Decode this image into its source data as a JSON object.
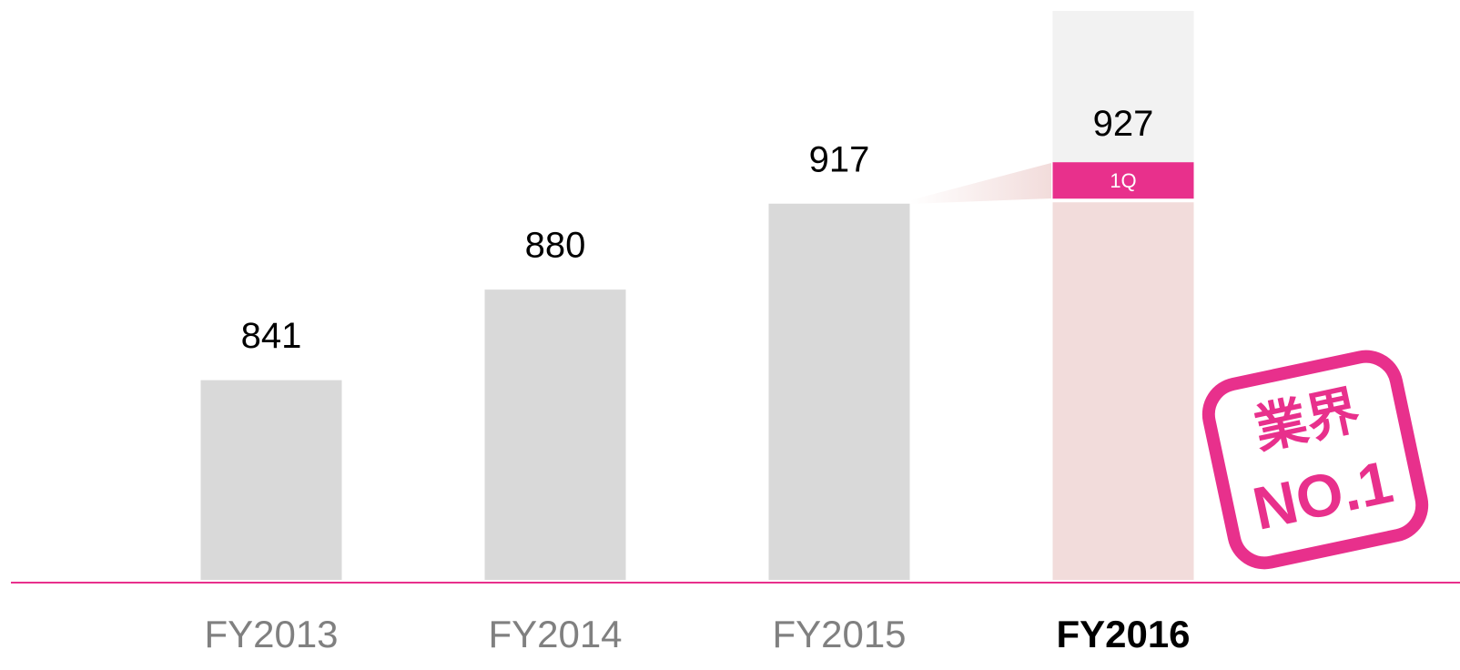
{
  "chart_data": {
    "type": "bar",
    "categories": [
      "FY2013",
      "FY2014",
      "FY2015",
      "FY2016"
    ],
    "values": [
      841,
      880,
      917,
      927
    ],
    "color": "#d9d9d9",
    "highlight_index": 3,
    "highlight_color": "#f2dcdb",
    "segment_label": "1Q",
    "segment_color": "#e8308c",
    "ylim": [
      755,
      1000
    ],
    "badge": {
      "line1": "業界",
      "line2": "NO.1"
    }
  }
}
